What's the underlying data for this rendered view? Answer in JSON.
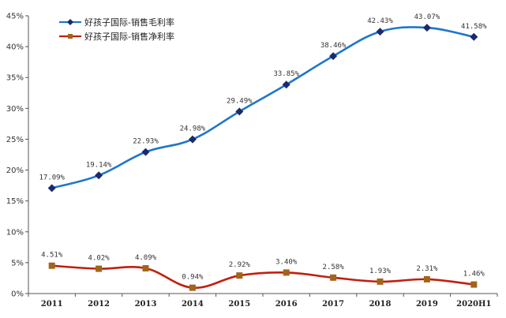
{
  "chart_data": {
    "type": "line",
    "title": "",
    "xlabel": "",
    "ylabel": "",
    "categories": [
      "2011",
      "2012",
      "2013",
      "2014",
      "2015",
      "2016",
      "2017",
      "2018",
      "2019",
      "2020H1"
    ],
    "ylim": [
      0,
      45
    ],
    "yticks": [
      "0%",
      "5%",
      "10%",
      "15%",
      "20%",
      "25%",
      "30%",
      "35%",
      "40%",
      "45%"
    ],
    "grid": false,
    "legend_position": "top-left",
    "series": [
      {
        "name": "好孩子国际-销售毛利率",
        "color": "#1f77c8",
        "marker_color": "#1a2a6c",
        "marker": "diamond",
        "values": [
          17.09,
          19.14,
          22.93,
          24.98,
          29.49,
          33.85,
          38.46,
          42.43,
          43.07,
          41.58
        ],
        "labels": [
          "17.09%",
          "19.14%",
          "22.93%",
          "24.98%",
          "29.49%",
          "33.85%",
          "38.46%",
          "42.43%",
          "43.07%",
          "41.58%"
        ]
      },
      {
        "name": "好孩子国际-销售净利率",
        "color": "#c0200f",
        "marker_color": "#a0651a",
        "marker": "square",
        "values": [
          4.51,
          4.02,
          4.09,
          0.94,
          2.92,
          3.4,
          2.58,
          1.93,
          2.31,
          1.46
        ],
        "labels": [
          "4.51%",
          "4.02%",
          "4.09%",
          "0.94%",
          "2.92%",
          "3.40%",
          "2.58%",
          "1.93%",
          "2.31%",
          "1.46%"
        ]
      }
    ]
  }
}
